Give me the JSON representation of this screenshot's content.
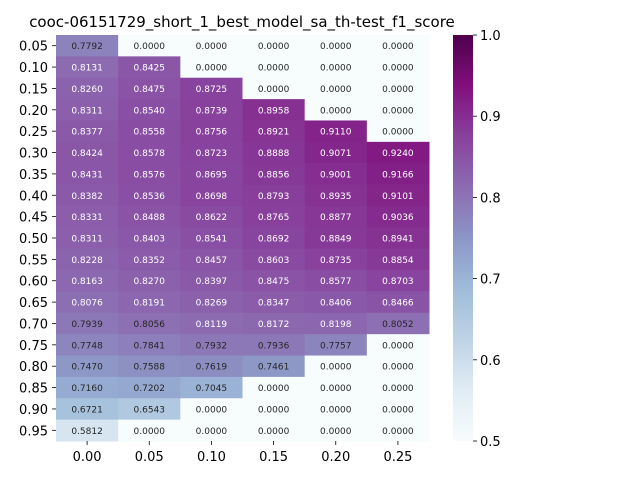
{
  "chart_data": {
    "type": "heatmap",
    "title": "cooc-06151729_short_1_best_model_sa_th-test_f1_score",
    "xlabel": "",
    "ylabel": "",
    "x_categories": [
      "0.00",
      "0.05",
      "0.10",
      "0.15",
      "0.20",
      "0.25"
    ],
    "y_categories": [
      "0.05",
      "0.10",
      "0.15",
      "0.20",
      "0.25",
      "0.30",
      "0.35",
      "0.40",
      "0.45",
      "0.50",
      "0.55",
      "0.60",
      "0.65",
      "0.70",
      "0.75",
      "0.80",
      "0.85",
      "0.90",
      "0.95"
    ],
    "values": [
      [
        0.7792,
        0.0,
        0.0,
        0.0,
        0.0,
        0.0
      ],
      [
        0.8131,
        0.8425,
        0.0,
        0.0,
        0.0,
        0.0
      ],
      [
        0.826,
        0.8475,
        0.8725,
        0.0,
        0.0,
        0.0
      ],
      [
        0.8311,
        0.854,
        0.8739,
        0.8958,
        0.0,
        0.0
      ],
      [
        0.8377,
        0.8558,
        0.8756,
        0.8921,
        0.911,
        0.0
      ],
      [
        0.8424,
        0.8578,
        0.8723,
        0.8888,
        0.9071,
        0.924
      ],
      [
        0.8431,
        0.8576,
        0.8695,
        0.8856,
        0.9001,
        0.9166
      ],
      [
        0.8382,
        0.8536,
        0.8698,
        0.8793,
        0.8935,
        0.9101
      ],
      [
        0.8331,
        0.8488,
        0.8622,
        0.8765,
        0.8877,
        0.9036
      ],
      [
        0.8311,
        0.8403,
        0.8541,
        0.8692,
        0.8849,
        0.8941
      ],
      [
        0.8228,
        0.8352,
        0.8457,
        0.8603,
        0.8735,
        0.8854
      ],
      [
        0.8163,
        0.827,
        0.8397,
        0.8475,
        0.8577,
        0.8703
      ],
      [
        0.8076,
        0.8191,
        0.8269,
        0.8347,
        0.8406,
        0.8466
      ],
      [
        0.7939,
        0.8056,
        0.8119,
        0.8172,
        0.8198,
        0.8052
      ],
      [
        0.7748,
        0.7841,
        0.7932,
        0.7936,
        0.7757,
        0.0
      ],
      [
        0.747,
        0.7588,
        0.7619,
        0.7461,
        0.0,
        0.0
      ],
      [
        0.716,
        0.7202,
        0.7045,
        0.0,
        0.0,
        0.0
      ],
      [
        0.6721,
        0.6543,
        0.0,
        0.0,
        0.0,
        0.0
      ],
      [
        0.5812,
        0.0,
        0.0,
        0.0,
        0.0,
        0.0
      ]
    ],
    "value_format_decimals": 4,
    "colormap": "BuPu",
    "vmin": 0.5,
    "vmax": 1.0,
    "colorbar_ticks": [
      "0.5",
      "0.6",
      "0.7",
      "0.8",
      "0.9",
      "1.0"
    ],
    "colorbar_tick_values": [
      0.5,
      0.6,
      0.7,
      0.8,
      0.9,
      1.0
    ],
    "colorbar_colors": [
      "#f7fcfd",
      "#e0ecf4",
      "#bfd3e6",
      "#9ebcda",
      "#8c96c6",
      "#8c6bb1",
      "#88419d",
      "#810f7c",
      "#4d004b"
    ],
    "grid": false,
    "legend": "colorbar-right"
  }
}
